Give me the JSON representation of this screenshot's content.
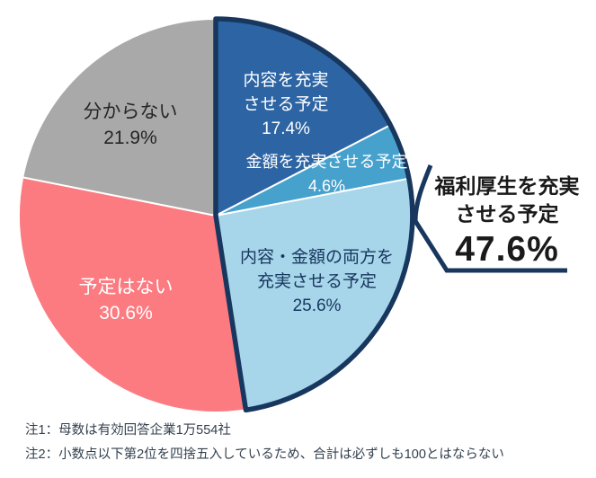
{
  "chart_data": {
    "type": "pie",
    "unit": "%",
    "direction": "clockwise",
    "start_angle_deg": 0,
    "separator_color": "#ffffff",
    "slices": [
      {
        "label": "内容を充実させる予定",
        "value": 17.4,
        "pct_text": "17.4%",
        "color": "#2d64a3",
        "text_color": "#ffffff",
        "label_lines": [
          "内容を充実",
          "させる予定"
        ]
      },
      {
        "label": "金額を充実させる予定",
        "value": 4.6,
        "pct_text": "4.6%",
        "color": "#47a1cd",
        "text_color": "#ffffff",
        "label_lines": [
          "金額を充実させる予定"
        ]
      },
      {
        "label": "内容・金額の両方を充実させる予定",
        "value": 25.6,
        "pct_text": "25.6%",
        "color": "#a7d5ea",
        "text_color": "#17375e",
        "label_lines": [
          "内容・金額の両方を",
          "充実させる予定"
        ]
      },
      {
        "label": "予定はない",
        "value": 30.6,
        "pct_text": "30.6%",
        "color": "#fb7b81",
        "text_color": "#ffffff",
        "label_lines": [
          "予定はない"
        ]
      },
      {
        "label": "分からない",
        "value": 21.9,
        "pct_text": "21.9%",
        "color": "#a9a9a9",
        "text_color": "#262626",
        "label_lines": [
          "分からない"
        ]
      }
    ],
    "group_highlight": {
      "label": "福利厚生を充実させる予定",
      "label_lines": [
        "福利厚生を充実",
        "させる予定"
      ],
      "value": 47.6,
      "pct_text": "47.6%",
      "slice_indexes": [
        0,
        1,
        2
      ],
      "outline_color": "#17375e"
    },
    "notes": [
      "注1：母数は有効回答企業1万554社",
      "注2：小数点以下第2位を四捨五入しているため、合計は必ずしも100とはならない"
    ]
  }
}
